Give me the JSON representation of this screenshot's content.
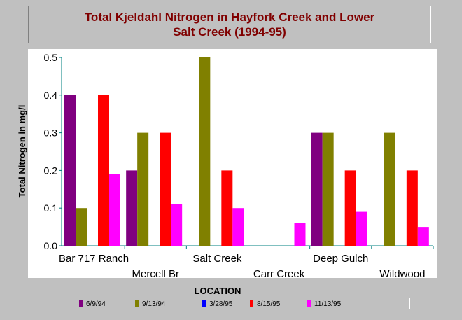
{
  "chart_data": {
    "type": "bar",
    "title": "Total Kjeldahl Nitrogen in Hayfork Creek and Lower Salt Creek (1994-95)",
    "title_lines": [
      "Total Kjeldahl Nitrogen in Hayfork Creek and Lower",
      "Salt Creek (1994-95)"
    ],
    "xlabel": "LOCATION",
    "ylabel": "Total Nitrogen in mg/l",
    "ylim": [
      0,
      0.5
    ],
    "yticks": [
      "0.0",
      "0.1",
      "0.2",
      "0.3",
      "0.4",
      "0.5"
    ],
    "grid": false,
    "legend_position": "bottom",
    "categories": [
      "Bar 717 Ranch",
      "Mercell Br",
      "Salt Creek",
      "Carr Creek",
      "Deep Gulch",
      "Wildwood"
    ],
    "series": [
      {
        "name": "6/9/94",
        "color": "#800080",
        "values": [
          0.4,
          0.2,
          0,
          0,
          0.3,
          0
        ]
      },
      {
        "name": "9/13/94",
        "color": "#808000",
        "values": [
          0.1,
          0.3,
          0.5,
          0,
          0.3,
          0.3
        ]
      },
      {
        "name": "3/28/95",
        "color": "#0000ff",
        "values": [
          0,
          0,
          0,
          0,
          0,
          0
        ]
      },
      {
        "name": "8/15/95",
        "color": "#ff0000",
        "values": [
          0.4,
          0.3,
          0.2,
          0,
          0.2,
          0.2
        ]
      },
      {
        "name": "11/13/95",
        "color": "#ff00ff",
        "values": [
          0.19,
          0.11,
          0.1,
          0.06,
          0.09,
          0.05
        ]
      }
    ],
    "axis_color": "#008080"
  }
}
